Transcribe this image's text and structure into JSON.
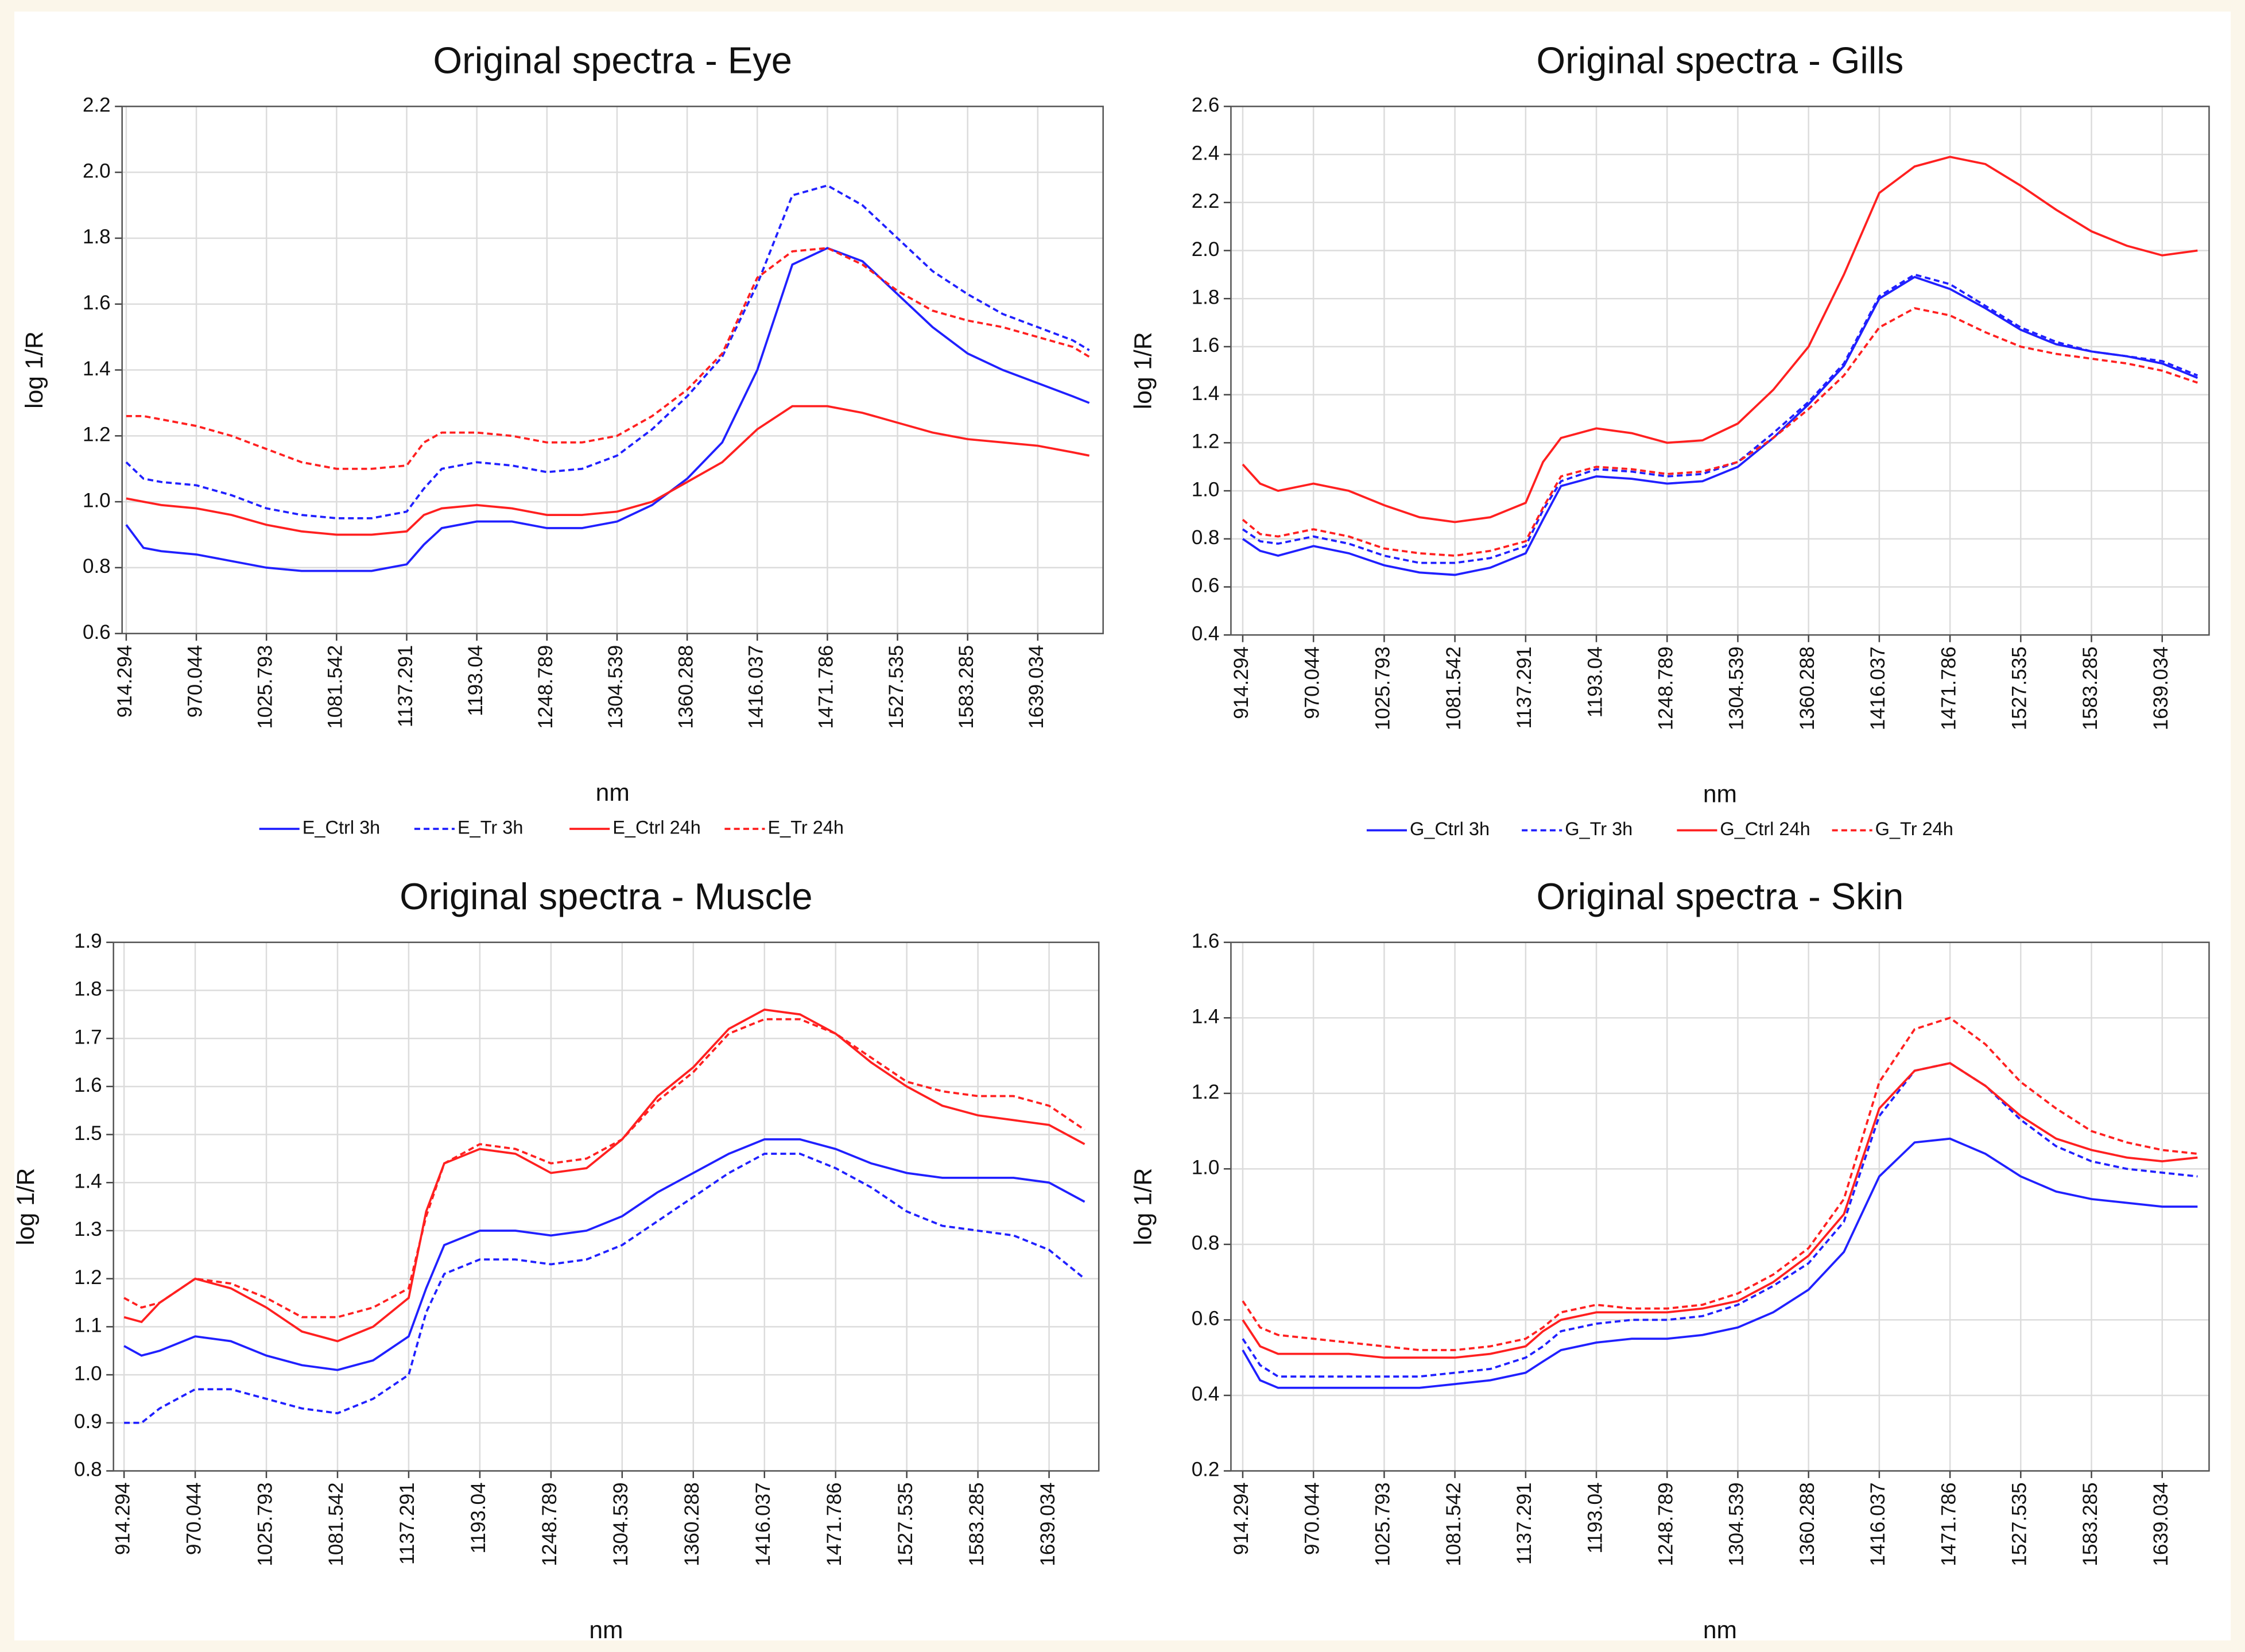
{
  "chart_data": [
    {
      "type": "line",
      "title": "Original spectra - Eye",
      "xlabel": "nm",
      "ylabel": "log 1/R",
      "grid": true,
      "legend": "bottom",
      "x": [
        914.294,
        928,
        942.169,
        970.044,
        997.919,
        1025.793,
        1053.668,
        1081.542,
        1109.417,
        1137.291,
        1151,
        1165.166,
        1193.04,
        1220.915,
        1248.789,
        1276.664,
        1304.539,
        1332.414,
        1360.288,
        1388.163,
        1416.037,
        1443.912,
        1471.786,
        1499.661,
        1527.535,
        1555.41,
        1583.285,
        1611.16,
        1639.034,
        1666.909,
        1680
      ],
      "xlim": [
        911,
        1691
      ],
      "xticks": [
        914.294,
        970.044,
        1025.793,
        1081.542,
        1137.291,
        1193.04,
        1248.789,
        1304.539,
        1360.288,
        1416.037,
        1471.786,
        1527.535,
        1583.285,
        1639.034
      ],
      "ylim": [
        0.6,
        2.2
      ],
      "yticks": [
        0.6,
        0.8,
        {
          "value": 1,
          "label": "1.0"
        },
        1.2,
        1.4,
        1.6,
        1.8,
        {
          "value": 2,
          "label": "2.0"
        },
        2.2
      ],
      "series": [
        {
          "name": "E_Ctrl 3h",
          "color": "#2020ff",
          "line_style": "solid",
          "values": [
            0.93,
            0.86,
            0.85,
            0.84,
            0.82,
            0.8,
            0.79,
            0.79,
            0.79,
            0.81,
            0.87,
            0.92,
            0.94,
            0.94,
            0.92,
            0.92,
            0.94,
            0.99,
            1.07,
            1.18,
            1.4,
            1.72,
            1.77,
            1.73,
            1.63,
            1.53,
            1.45,
            1.4,
            1.36,
            1.32,
            1.3
          ]
        },
        {
          "name": "E_Tr 3h",
          "color": "#2020ff",
          "line_style": "dashed",
          "values": [
            1.12,
            1.07,
            1.06,
            1.05,
            1.02,
            0.98,
            0.96,
            0.95,
            0.95,
            0.97,
            1.04,
            1.1,
            1.12,
            1.11,
            1.09,
            1.1,
            1.14,
            1.22,
            1.32,
            1.44,
            1.66,
            1.93,
            1.96,
            1.9,
            1.8,
            1.7,
            1.63,
            1.57,
            1.53,
            1.49,
            1.46
          ]
        },
        {
          "name": "E_Ctrl 24h",
          "color": "#ff2020",
          "line_style": "solid",
          "values": [
            1.01,
            1.0,
            0.99,
            0.98,
            0.96,
            0.93,
            0.91,
            0.9,
            0.9,
            0.91,
            0.96,
            0.98,
            0.99,
            0.98,
            0.96,
            0.96,
            0.97,
            1.0,
            1.06,
            1.12,
            1.22,
            1.29,
            1.29,
            1.27,
            1.24,
            1.21,
            1.19,
            1.18,
            1.17,
            1.15,
            1.14
          ]
        },
        {
          "name": "E_Tr 24h",
          "color": "#ff2020",
          "line_style": "dashed",
          "values": [
            1.26,
            1.26,
            1.25,
            1.23,
            1.2,
            1.16,
            1.12,
            1.1,
            1.1,
            1.11,
            1.18,
            1.21,
            1.21,
            1.2,
            1.18,
            1.18,
            1.2,
            1.26,
            1.34,
            1.45,
            1.68,
            1.76,
            1.77,
            1.72,
            1.64,
            1.58,
            1.55,
            1.53,
            1.5,
            1.47,
            1.44
          ]
        }
      ]
    },
    {
      "type": "line",
      "title": "Original spectra - Gills",
      "xlabel": "nm",
      "ylabel": "log 1/R",
      "grid": true,
      "legend": "bottom",
      "x": [
        914.294,
        928,
        942.169,
        970.044,
        997.919,
        1025.793,
        1053.668,
        1081.542,
        1109.417,
        1137.291,
        1151,
        1165.166,
        1193.04,
        1220.915,
        1248.789,
        1276.664,
        1304.539,
        1332.414,
        1360.288,
        1388.163,
        1416.037,
        1443.912,
        1471.786,
        1499.661,
        1527.535,
        1555.41,
        1583.285,
        1611.16,
        1639.034,
        1666.909
      ],
      "xlim": [
        905,
        1676
      ],
      "xticks": [
        914.294,
        970.044,
        1025.793,
        1081.542,
        1137.291,
        1193.04,
        1248.789,
        1304.539,
        1360.288,
        1416.037,
        1471.786,
        1527.535,
        1583.285,
        1639.034
      ],
      "ylim": [
        0.4,
        2.6
      ],
      "yticks": [
        0.4,
        0.6,
        0.8,
        {
          "value": 1,
          "label": "1.0"
        },
        1.2,
        1.4,
        1.6,
        1.8,
        {
          "value": 2,
          "label": "2.0"
        },
        2.2,
        2.4,
        2.6
      ],
      "series": [
        {
          "name": "G_Ctrl 3h",
          "color": "#2020ff",
          "line_style": "solid",
          "values": [
            0.8,
            0.75,
            0.73,
            0.77,
            0.74,
            0.69,
            0.66,
            0.65,
            0.68,
            0.74,
            0.88,
            1.02,
            1.06,
            1.05,
            1.03,
            1.04,
            1.1,
            1.22,
            1.36,
            1.52,
            1.8,
            1.89,
            1.84,
            1.76,
            1.67,
            1.61,
            1.58,
            1.56,
            1.53,
            1.47
          ]
        },
        {
          "name": "G_Tr 3h",
          "color": "#2020ff",
          "line_style": "dashed",
          "values": [
            0.84,
            0.79,
            0.78,
            0.81,
            0.78,
            0.73,
            0.7,
            0.7,
            0.72,
            0.77,
            0.92,
            1.04,
            1.09,
            1.08,
            1.06,
            1.07,
            1.12,
            1.24,
            1.37,
            1.53,
            1.81,
            1.9,
            1.86,
            1.77,
            1.68,
            1.62,
            1.58,
            1.56,
            1.54,
            1.48
          ]
        },
        {
          "name": "G_Ctrl 24h",
          "color": "#ff2020",
          "line_style": "solid",
          "values": [
            1.11,
            1.03,
            1.0,
            1.03,
            1.0,
            0.94,
            0.89,
            0.87,
            0.89,
            0.95,
            1.12,
            1.22,
            1.26,
            1.24,
            1.2,
            1.21,
            1.28,
            1.42,
            1.6,
            1.9,
            2.24,
            2.35,
            2.39,
            2.36,
            2.27,
            2.17,
            2.08,
            2.02,
            1.98,
            2.0
          ]
        },
        {
          "name": "G_Tr 24h",
          "color": "#ff2020",
          "line_style": "dashed",
          "values": [
            0.88,
            0.82,
            0.81,
            0.84,
            0.81,
            0.76,
            0.74,
            0.73,
            0.75,
            0.79,
            0.93,
            1.06,
            1.1,
            1.09,
            1.07,
            1.08,
            1.12,
            1.22,
            1.34,
            1.48,
            1.68,
            1.76,
            1.73,
            1.66,
            1.6,
            1.57,
            1.55,
            1.53,
            1.5,
            1.45
          ]
        }
      ]
    },
    {
      "type": "line",
      "title": "Original spectra - Muscle",
      "xlabel": "nm",
      "ylabel": "log 1/R",
      "grid": true,
      "x": [
        914.294,
        928,
        942.169,
        970.044,
        997.919,
        1025.793,
        1053.668,
        1081.542,
        1109.417,
        1137.291,
        1151,
        1165.166,
        1193.04,
        1220.915,
        1248.789,
        1276.664,
        1304.539,
        1332.414,
        1360.288,
        1388.163,
        1416.037,
        1443.912,
        1471.786,
        1499.661,
        1527.535,
        1555.41,
        1583.285,
        1611.16,
        1639.034,
        1666.909
      ],
      "xlim": [
        906,
        1678
      ],
      "xticks": [
        914.294,
        970.044,
        1025.793,
        1081.542,
        1137.291,
        1193.04,
        1248.789,
        1304.539,
        1360.288,
        1416.037,
        1471.786,
        1527.535,
        1583.285,
        1639.034
      ],
      "ylim": [
        0.8,
        1.9
      ],
      "yticks": [
        0.8,
        0.9,
        {
          "value": 1,
          "label": "1.0"
        },
        1.1,
        1.2,
        1.3,
        1.4,
        1.5,
        1.6,
        1.7,
        1.8,
        1.9
      ],
      "series": [
        {
          "color": "#2020ff",
          "line_style": "solid",
          "values": [
            1.06,
            1.04,
            1.05,
            1.08,
            1.07,
            1.04,
            1.02,
            1.01,
            1.03,
            1.08,
            1.18,
            1.27,
            1.3,
            1.3,
            1.29,
            1.3,
            1.33,
            1.38,
            1.42,
            1.46,
            1.49,
            1.49,
            1.47,
            1.44,
            1.42,
            1.41,
            1.41,
            1.41,
            1.4,
            1.36
          ]
        },
        {
          "color": "#2020ff",
          "line_style": "dashed",
          "values": [
            0.9,
            0.9,
            0.93,
            0.97,
            0.97,
            0.95,
            0.93,
            0.92,
            0.95,
            1.0,
            1.13,
            1.21,
            1.24,
            1.24,
            1.23,
            1.24,
            1.27,
            1.32,
            1.37,
            1.42,
            1.46,
            1.46,
            1.43,
            1.39,
            1.34,
            1.31,
            1.3,
            1.29,
            1.26,
            1.2
          ]
        },
        {
          "color": "#ff2020",
          "line_style": "solid",
          "values": [
            1.12,
            1.11,
            1.15,
            1.2,
            1.18,
            1.14,
            1.09,
            1.07,
            1.1,
            1.16,
            1.34,
            1.44,
            1.47,
            1.46,
            1.42,
            1.43,
            1.49,
            1.58,
            1.64,
            1.72,
            1.76,
            1.75,
            1.71,
            1.65,
            1.6,
            1.56,
            1.54,
            1.53,
            1.52,
            1.48
          ]
        },
        {
          "color": "#ff2020",
          "line_style": "dashed",
          "values": [
            1.16,
            1.14,
            1.15,
            1.2,
            1.19,
            1.16,
            1.12,
            1.12,
            1.14,
            1.18,
            1.33,
            1.44,
            1.48,
            1.47,
            1.44,
            1.45,
            1.49,
            1.57,
            1.63,
            1.71,
            1.74,
            1.74,
            1.71,
            1.66,
            1.61,
            1.59,
            1.58,
            1.58,
            1.56,
            1.51
          ]
        }
      ]
    },
    {
      "type": "line",
      "title": "Original spectra - Skin",
      "xlabel": "nm",
      "ylabel": "log 1/R",
      "grid": true,
      "x": [
        914.294,
        928,
        942.169,
        970.044,
        997.919,
        1025.793,
        1053.668,
        1081.542,
        1109.417,
        1137.291,
        1151,
        1165.166,
        1193.04,
        1220.915,
        1248.789,
        1276.664,
        1304.539,
        1332.414,
        1360.288,
        1388.163,
        1416.037,
        1443.912,
        1471.786,
        1499.661,
        1527.535,
        1555.41,
        1583.285,
        1611.16,
        1639.034,
        1666.909
      ],
      "xlim": [
        905,
        1676
      ],
      "xticks": [
        914.294,
        970.044,
        1025.793,
        1081.542,
        1137.291,
        1193.04,
        1248.789,
        1304.539,
        1360.288,
        1416.037,
        1471.786,
        1527.535,
        1583.285,
        1639.034
      ],
      "ylim": [
        0.2,
        1.6
      ],
      "yticks": [
        0.2,
        0.4,
        0.6,
        0.8,
        {
          "value": 1,
          "label": "1.0"
        },
        1.2,
        1.4,
        1.6
      ],
      "series": [
        {
          "color": "#2020ff",
          "line_style": "solid",
          "values": [
            0.52,
            0.44,
            0.42,
            0.42,
            0.42,
            0.42,
            0.42,
            0.43,
            0.44,
            0.46,
            0.49,
            0.52,
            0.54,
            0.55,
            0.55,
            0.56,
            0.58,
            0.62,
            0.68,
            0.78,
            0.98,
            1.07,
            1.08,
            1.04,
            0.98,
            0.94,
            0.92,
            0.91,
            0.9,
            0.9
          ]
        },
        {
          "color": "#2020ff",
          "line_style": "dashed",
          "values": [
            0.55,
            0.48,
            0.45,
            0.45,
            0.45,
            0.45,
            0.45,
            0.46,
            0.47,
            0.5,
            0.53,
            0.57,
            0.59,
            0.6,
            0.6,
            0.61,
            0.64,
            0.69,
            0.75,
            0.86,
            1.14,
            1.26,
            1.28,
            1.22,
            1.13,
            1.06,
            1.02,
            1.0,
            0.99,
            0.98
          ]
        },
        {
          "color": "#ff2020",
          "line_style": "solid",
          "values": [
            0.6,
            0.53,
            0.51,
            0.51,
            0.51,
            0.5,
            0.5,
            0.5,
            0.51,
            0.53,
            0.57,
            0.6,
            0.62,
            0.62,
            0.62,
            0.63,
            0.65,
            0.7,
            0.77,
            0.88,
            1.16,
            1.26,
            1.28,
            1.22,
            1.14,
            1.08,
            1.05,
            1.03,
            1.02,
            1.03
          ]
        },
        {
          "color": "#ff2020",
          "line_style": "dashed",
          "values": [
            0.65,
            0.58,
            0.56,
            0.55,
            0.54,
            0.53,
            0.52,
            0.52,
            0.53,
            0.55,
            0.58,
            0.62,
            0.64,
            0.63,
            0.63,
            0.64,
            0.67,
            0.72,
            0.79,
            0.92,
            1.23,
            1.37,
            1.4,
            1.33,
            1.23,
            1.16,
            1.1,
            1.07,
            1.05,
            1.04
          ]
        }
      ]
    }
  ]
}
